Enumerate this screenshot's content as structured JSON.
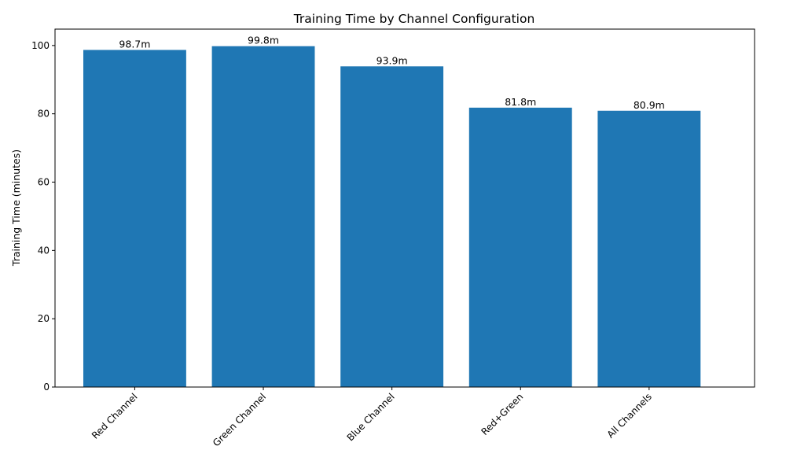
{
  "chart_data": {
    "type": "bar",
    "title": "Training Time by Channel Configuration",
    "xlabel": "",
    "ylabel": "Training Time (minutes)",
    "ylim": [
      0,
      104.8
    ],
    "yticks": [
      0,
      20,
      40,
      60,
      80,
      100
    ],
    "categories": [
      "Red Channel",
      "Green Channel",
      "Blue Channel",
      "Red+Green",
      "All Channels"
    ],
    "values": [
      98.7,
      99.8,
      93.9,
      81.8,
      80.9
    ],
    "value_labels": [
      "98.7m",
      "99.8m",
      "93.9m",
      "81.8m",
      "80.9m"
    ],
    "bar_color": "#1f77b4",
    "grid": false,
    "legend": null
  }
}
